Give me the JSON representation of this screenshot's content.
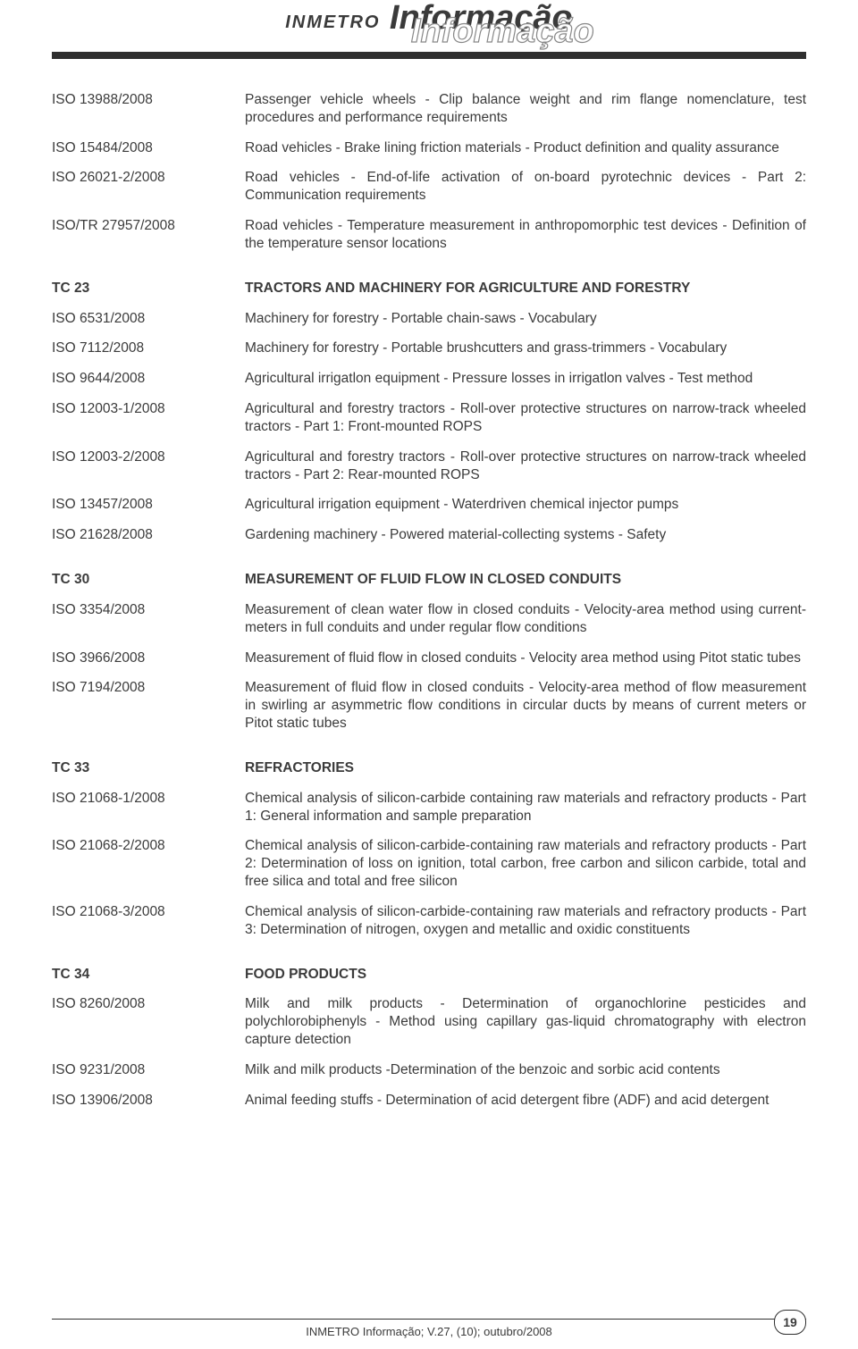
{
  "header": {
    "brand_left": "INMETRO",
    "brand_main": "Informação",
    "brand_shadow": "Informação"
  },
  "sections": [
    {
      "heading": null,
      "rows": [
        {
          "code": "ISO 13988/2008",
          "desc": "Passenger vehicle wheels - Clip balance weight and rim flange nomenclature, test procedures and performance requirements"
        },
        {
          "code": "ISO 15484/2008",
          "desc": "Road vehicles - Brake lining friction materials - Product definition and quality assurance"
        },
        {
          "code": "ISO 26021-2/2008",
          "desc": "Road vehicles - End-of-life activation of on-board pyrotechnic devices - Part 2: Communication requirements"
        },
        {
          "code": "ISO/TR 27957/2008",
          "desc": "Road vehicles - Temperature measurement in anthropomorphic test devices - Definition of the temperature sensor locations"
        }
      ]
    },
    {
      "heading": {
        "code": "TC 23",
        "desc": "TRACTORS AND MACHINERY FOR AGRICULTURE AND FORESTRY"
      },
      "rows": [
        {
          "code": "ISO 6531/2008",
          "desc": "Machinery for forestry - Portable chain-saws - Vocabulary"
        },
        {
          "code": "ISO 7112/2008",
          "desc": "Machinery for forestry - Portable brushcutters and grass-trimmers - Vocabulary"
        },
        {
          "code": "ISO 9644/2008",
          "desc": "Agricultural irrigatlon equipment - Pressure losses in irrigatlon valves - Test method"
        },
        {
          "code": "ISO 12003-1/2008",
          "desc": "Agricultural and forestry tractors - Roll-over protective structures on narrow-track wheeled tractors - Part 1: Front-mounted ROPS"
        },
        {
          "code": "ISO 12003-2/2008",
          "desc": "Agricultural and forestry tractors - Roll-over protective structures on narrow-track wheeled tractors - Part 2:  Rear-mounted ROPS"
        },
        {
          "code": "ISO 13457/2008",
          "desc": "Agricultural irrigation equipment - Waterdriven chemical injector pumps"
        },
        {
          "code": "ISO 21628/2008",
          "desc": "Gardening machinery - Powered material-collecting systems - Safety"
        }
      ]
    },
    {
      "heading": {
        "code": "TC 30",
        "desc": "MEASUREMENT OF FLUID FLOW IN CLOSED CONDUITS"
      },
      "rows": [
        {
          "code": "ISO 3354/2008",
          "desc": "Measurement of clean water flow in closed conduits - Velocity-area method using current-meters in full conduits and under regular flow conditions"
        },
        {
          "code": "ISO 3966/2008",
          "desc": "Measurement of fluid flow in closed conduits - Velocity area method using Pitot static tubes"
        },
        {
          "code": "ISO 7194/2008",
          "desc": "Measurement of fluid flow in closed conduits - Velocity-area method of flow measurement in swirling ar asymmetric flow conditions in circular ducts by means of current meters or Pitot static tubes"
        }
      ]
    },
    {
      "heading": {
        "code": "TC 33",
        "desc": "REFRACTORIES"
      },
      "rows": [
        {
          "code": "ISO 21068-1/2008",
          "desc": "Chemical analysis of silicon-carbide containing raw materials and refractory products - Part 1: General information and sample preparation"
        },
        {
          "code": "ISO 21068-2/2008",
          "desc": "Chemical analysis of silicon-carbide-containing raw materials and refractory products - Part 2:  Determination of loss on ignition, total carbon, free carbon and silicon carbide, total and free silica and total and free silicon"
        },
        {
          "code": "ISO 21068-3/2008",
          "desc": "Chemical analysis of silicon-carbide-containing raw materials and refractory products - Part  3: Determination of nitrogen, oxygen and metallic and oxidic constituents"
        }
      ]
    },
    {
      "heading": {
        "code": "TC 34",
        "desc": "FOOD PRODUCTS"
      },
      "rows": [
        {
          "code": "ISO 8260/2008",
          "desc": "Milk and milk products - Determination of organochlorine pesticides and polychlorobiphenyls - Method using capillary gas-liquid chromatography with electron capture detection"
        },
        {
          "code": "ISO 9231/2008",
          "desc": "Milk and milk products -Determination of the benzoic and sorbic acid contents"
        },
        {
          "code": "ISO 13906/2008",
          "desc": "Animal feeding stuffs - Determination of acid detergent fibre (ADF) and acid detergent"
        }
      ]
    }
  ],
  "footer": {
    "text": "INMETRO Informação; V.27, (10); outubro/2008",
    "page_number": "19"
  }
}
